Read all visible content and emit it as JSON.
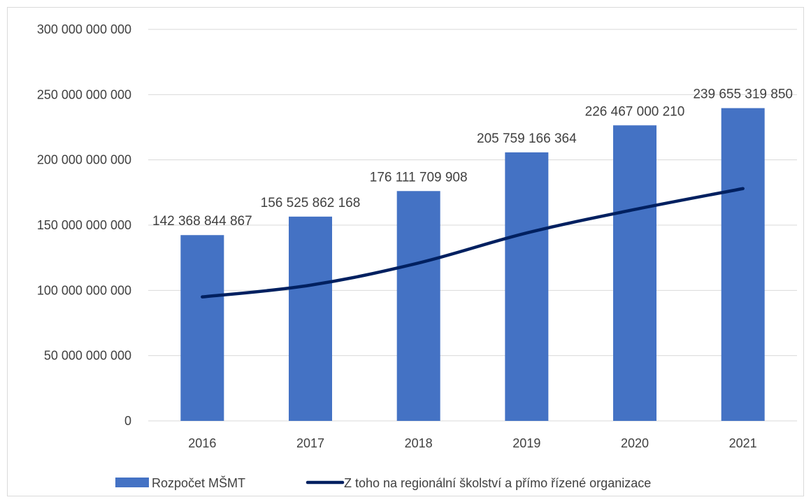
{
  "chart_data": {
    "type": "bar",
    "title": "",
    "xlabel": "",
    "ylabel": "",
    "categories": [
      "2016",
      "2017",
      "2018",
      "2019",
      "2020",
      "2021"
    ],
    "ylim": [
      0,
      300000000000
    ],
    "yticks": [
      0,
      50000000000,
      100000000000,
      150000000000,
      200000000000,
      250000000000,
      300000000000
    ],
    "ytick_labels": [
      "0",
      "50 000 000 000",
      "100 000 000 000",
      "150 000 000 000",
      "200 000 000 000",
      "250 000 000 000",
      "300 000 000 000"
    ],
    "grid": true,
    "legend_position": "bottom",
    "series": [
      {
        "name": "Rozpočet MŠMT",
        "type": "bar",
        "color": "#4472c4",
        "values": [
          142368844867,
          156525862168,
          176111709908,
          205759166364,
          226467000210,
          239655319850
        ],
        "data_labels": [
          "142 368 844 867",
          "156 525 862 168",
          "176 111 709 908",
          "205 759 166 364",
          "226 467 000 210",
          "239 655 319 850"
        ]
      },
      {
        "name": "Z toho na regionální školství a přímo řízené organizace",
        "type": "line",
        "color": "#002060",
        "values": [
          95000000000,
          104000000000,
          121000000000,
          144000000000,
          162000000000,
          178000000000
        ]
      }
    ]
  }
}
